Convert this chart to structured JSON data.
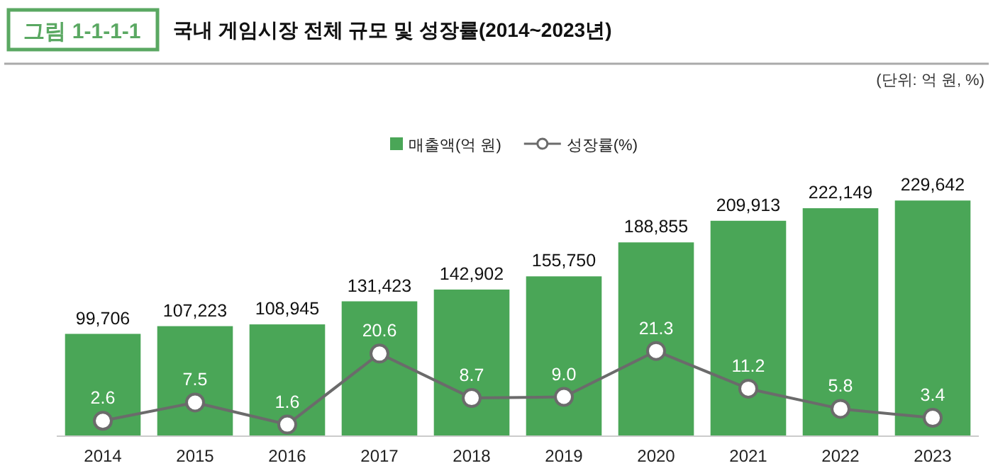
{
  "chart_data": {
    "type": "bar",
    "title": "국내 게임시장 전체 규모 및 성장률(2014~2023년)",
    "annotations": [
      "그림 1-1-1-1",
      "(단위: 억 원, %)"
    ],
    "categories": [
      "2014",
      "2015",
      "2016",
      "2017",
      "2018",
      "2019",
      "2020",
      "2021",
      "2022",
      "2023"
    ],
    "series": [
      {
        "name": "매출액(억 원)",
        "color": "#4aa657",
        "values": [
          99706,
          107223,
          108945,
          131423,
          142902,
          155750,
          188855,
          209913,
          222149,
          229642
        ],
        "value_labels": [
          "99,706",
          "107,223",
          "108,945",
          "131,423",
          "142,902",
          "155,750",
          "188,855",
          "209,913",
          "222,149",
          "229,642"
        ]
      },
      {
        "name": "성장률(%)",
        "type": "line",
        "axis": "y2",
        "color": "#6b6b6b",
        "marker": "circle",
        "values": [
          2.6,
          7.5,
          1.6,
          20.6,
          8.7,
          9.0,
          21.3,
          11.2,
          5.8,
          3.4
        ],
        "value_labels": [
          "2.6",
          "7.5",
          "1.6",
          "20.6",
          "8.7",
          "9.0",
          "21.3",
          "11.2",
          "5.8",
          "3.4"
        ]
      }
    ],
    "legend": "top"
  }
}
